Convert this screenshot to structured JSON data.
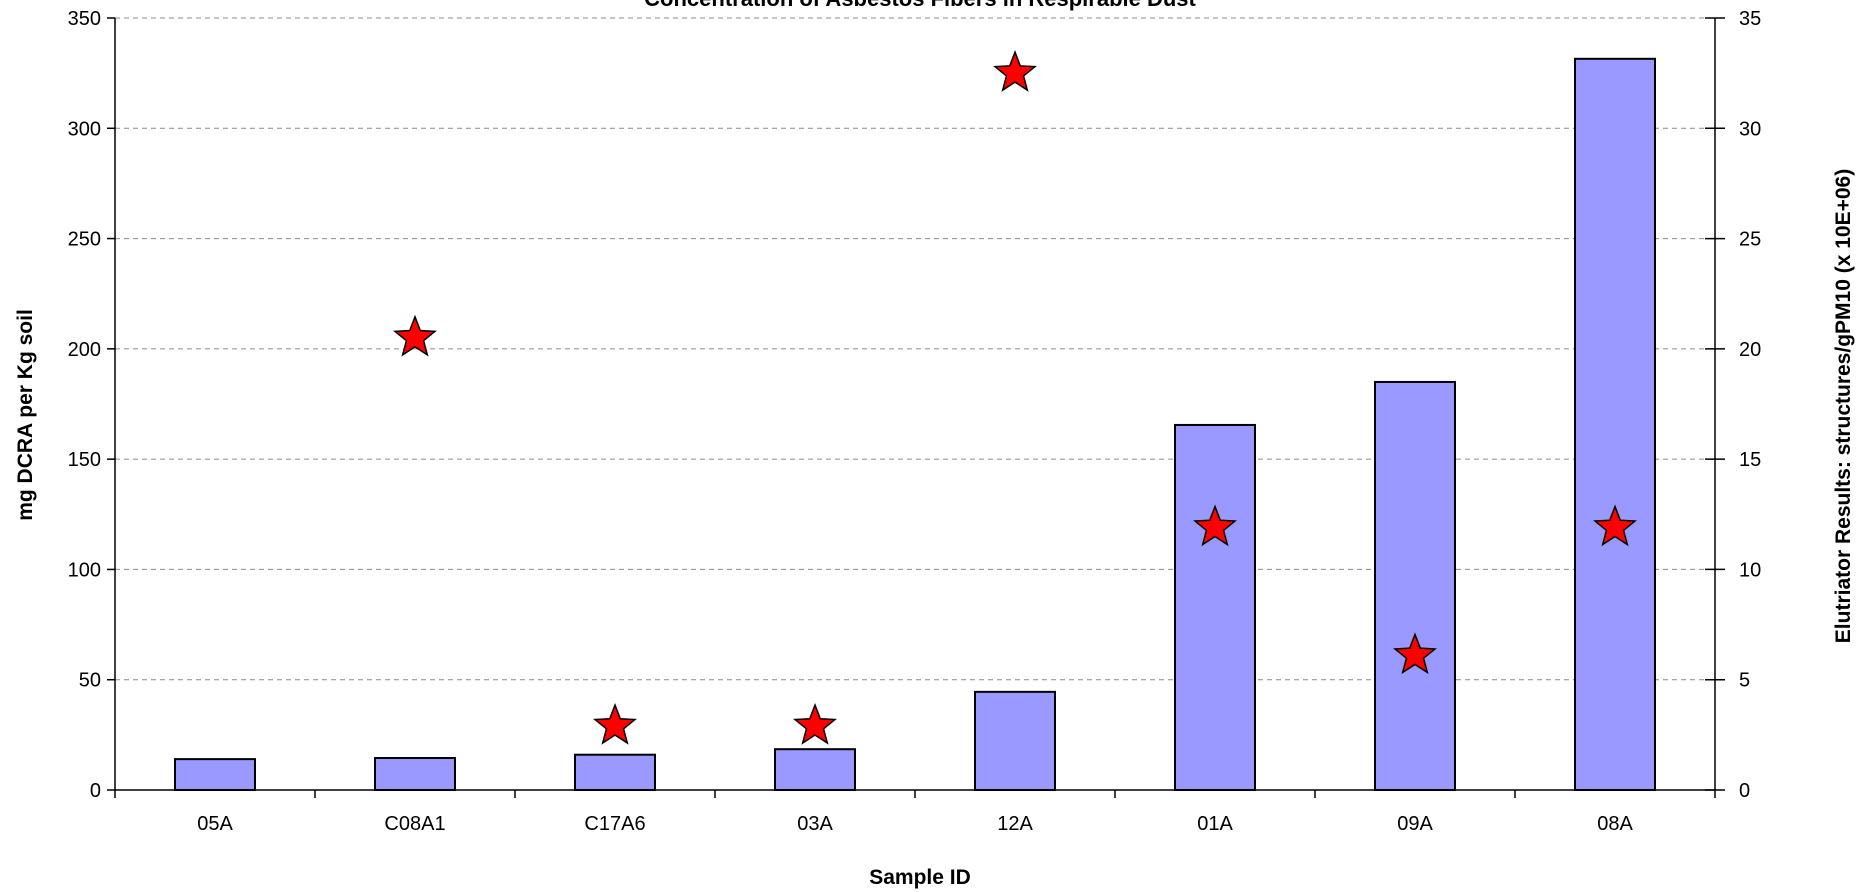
{
  "chart_data": {
    "type": "bar",
    "title": "Concentration of Asbestos Fibers in Respirable Dust",
    "xlabel": "Sample ID",
    "ylabel": "mg DCRA per Kg soil",
    "y2label": "Elutriator Results: structures/gPM10 (x 10E+06)",
    "categories": [
      "05A",
      "C08A1",
      "C17A6",
      "03A",
      "12A",
      "01A",
      "09A",
      "08A"
    ],
    "ylim": [
      0,
      350
    ],
    "yticks": [
      0,
      50,
      100,
      150,
      200,
      250,
      300,
      350
    ],
    "y2lim": [
      0,
      35
    ],
    "y2ticks": [
      0,
      5,
      10,
      15,
      20,
      25,
      30,
      35
    ],
    "grid": true,
    "series": [
      {
        "type": "bar",
        "axis": "left",
        "color": "#9999ff",
        "values": [
          14,
          14.5,
          16,
          18.5,
          44.5,
          165.5,
          185,
          331.5
        ]
      },
      {
        "type": "scatter",
        "axis": "right",
        "marker": "star",
        "color": "#ff0000",
        "values": [
          null,
          20.5,
          2.9,
          2.9,
          32.5,
          11.9,
          6.1,
          11.9
        ]
      }
    ]
  }
}
